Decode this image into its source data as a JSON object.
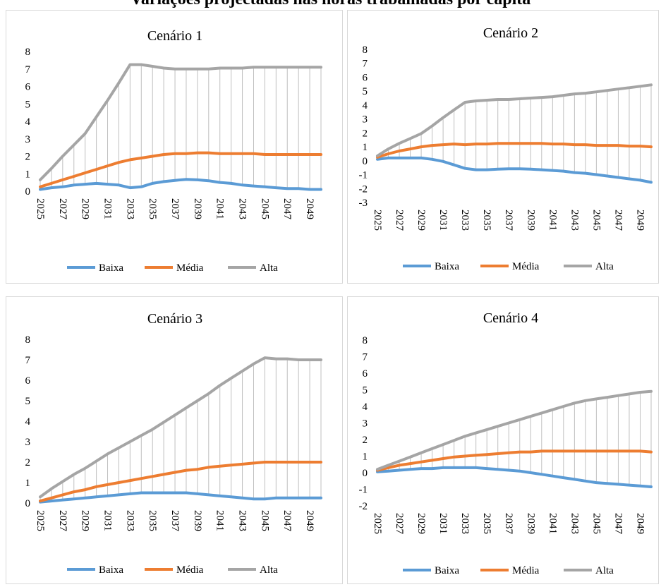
{
  "header": {
    "text": "Variações projectadas nas horas trabalhadas por capita"
  },
  "colors": {
    "baixa": "#5B9BD5",
    "media": "#ED7D31",
    "alta": "#A5A5A5",
    "droplines": "#bfbfbf",
    "border": "#d9d9d9"
  },
  "chart_data": [
    {
      "type": "line",
      "title": "Cenário 1",
      "x": [
        2025,
        2026,
        2027,
        2028,
        2029,
        2030,
        2031,
        2032,
        2033,
        2034,
        2035,
        2036,
        2037,
        2038,
        2039,
        2040,
        2041,
        2042,
        2043,
        2044,
        2045,
        2046,
        2047,
        2048,
        2049,
        2050
      ],
      "x_tick_labels": [
        "2025",
        "2027",
        "2029",
        "2031",
        "2033",
        "2035",
        "2037",
        "2039",
        "2041",
        "2043",
        "2045",
        "2047",
        "2049"
      ],
      "ylim": [
        0,
        8
      ],
      "y_ticks": [
        "0",
        "1",
        "2",
        "3",
        "4",
        "5",
        "6",
        "7",
        "8"
      ],
      "drop_lines": true,
      "legend_position": "bottom",
      "series": [
        {
          "name": "Baixa",
          "color_key": "baixa",
          "values": [
            0.1,
            0.2,
            0.25,
            0.35,
            0.4,
            0.45,
            0.4,
            0.35,
            0.2,
            0.25,
            0.45,
            0.55,
            0.62,
            0.68,
            0.65,
            0.6,
            0.5,
            0.45,
            0.35,
            0.3,
            0.25,
            0.2,
            0.15,
            0.15,
            0.1,
            0.1
          ]
        },
        {
          "name": "Média",
          "color_key": "media",
          "values": [
            0.25,
            0.45,
            0.65,
            0.85,
            1.05,
            1.25,
            1.45,
            1.65,
            1.8,
            1.9,
            2.0,
            2.1,
            2.15,
            2.15,
            2.2,
            2.2,
            2.15,
            2.15,
            2.15,
            2.15,
            2.1,
            2.1,
            2.1,
            2.1,
            2.1,
            2.1
          ]
        },
        {
          "name": "Alta",
          "color_key": "alta",
          "values": [
            0.65,
            1.3,
            2.0,
            2.65,
            3.3,
            4.25,
            5.2,
            6.2,
            7.25,
            7.25,
            7.15,
            7.05,
            7.0,
            7.0,
            7.0,
            7.0,
            7.05,
            7.05,
            7.05,
            7.1,
            7.1,
            7.1,
            7.1,
            7.1,
            7.1,
            7.1
          ]
        }
      ]
    },
    {
      "type": "line",
      "title": "Cenário 2",
      "x": [
        2025,
        2026,
        2027,
        2028,
        2029,
        2030,
        2031,
        2032,
        2033,
        2034,
        2035,
        2036,
        2037,
        2038,
        2039,
        2040,
        2041,
        2042,
        2043,
        2044,
        2045,
        2046,
        2047,
        2048,
        2049,
        2050
      ],
      "x_tick_labels": [
        "2025",
        "2027",
        "2029",
        "2031",
        "2033",
        "2035",
        "2037",
        "2039",
        "2041",
        "2043",
        "2045",
        "2047",
        "2049"
      ],
      "ylim": [
        -3,
        8
      ],
      "y_ticks": [
        "-3",
        "-2",
        "-1",
        "0",
        "1",
        "2",
        "3",
        "4",
        "5",
        "6",
        "7",
        "8"
      ],
      "drop_lines": true,
      "legend_position": "bottom",
      "series": [
        {
          "name": "Baixa",
          "color_key": "baixa",
          "values": [
            0.1,
            0.2,
            0.2,
            0.2,
            0.2,
            0.1,
            -0.05,
            -0.3,
            -0.55,
            -0.65,
            -0.65,
            -0.6,
            -0.58,
            -0.58,
            -0.6,
            -0.65,
            -0.7,
            -0.75,
            -0.85,
            -0.9,
            -1.0,
            -1.1,
            -1.2,
            -1.3,
            -1.4,
            -1.55
          ]
        },
        {
          "name": "Média",
          "color_key": "media",
          "values": [
            0.25,
            0.5,
            0.7,
            0.85,
            1.0,
            1.1,
            1.15,
            1.2,
            1.15,
            1.2,
            1.2,
            1.25,
            1.25,
            1.25,
            1.25,
            1.25,
            1.2,
            1.2,
            1.15,
            1.15,
            1.1,
            1.1,
            1.1,
            1.05,
            1.05,
            1.0
          ]
        },
        {
          "name": "Alta",
          "color_key": "alta",
          "values": [
            0.35,
            0.85,
            1.25,
            1.6,
            1.95,
            2.5,
            3.1,
            3.65,
            4.2,
            4.3,
            4.35,
            4.4,
            4.4,
            4.45,
            4.5,
            4.55,
            4.6,
            4.7,
            4.8,
            4.85,
            4.95,
            5.05,
            5.15,
            5.25,
            5.35,
            5.45
          ]
        }
      ]
    },
    {
      "type": "line",
      "title": "Cenário 3",
      "x": [
        2025,
        2026,
        2027,
        2028,
        2029,
        2030,
        2031,
        2032,
        2033,
        2034,
        2035,
        2036,
        2037,
        2038,
        2039,
        2040,
        2041,
        2042,
        2043,
        2044,
        2045,
        2046,
        2047,
        2048,
        2049,
        2050
      ],
      "x_tick_labels": [
        "2025",
        "2027",
        "2029",
        "2031",
        "2033",
        "2035",
        "2037",
        "2039",
        "2041",
        "2043",
        "2045",
        "2047",
        "2049"
      ],
      "ylim": [
        0,
        8
      ],
      "y_ticks": [
        "0",
        "1",
        "2",
        "3",
        "4",
        "5",
        "6",
        "7",
        "8"
      ],
      "drop_lines": true,
      "legend_position": "bottom",
      "series": [
        {
          "name": "Baixa",
          "color_key": "baixa",
          "values": [
            0.05,
            0.1,
            0.15,
            0.2,
            0.25,
            0.3,
            0.35,
            0.4,
            0.45,
            0.5,
            0.5,
            0.5,
            0.5,
            0.5,
            0.45,
            0.4,
            0.35,
            0.3,
            0.25,
            0.2,
            0.2,
            0.25,
            0.25,
            0.25,
            0.25,
            0.25
          ]
        },
        {
          "name": "Média",
          "color_key": "media",
          "values": [
            0.1,
            0.25,
            0.4,
            0.55,
            0.65,
            0.8,
            0.9,
            1.0,
            1.1,
            1.2,
            1.3,
            1.4,
            1.5,
            1.6,
            1.65,
            1.75,
            1.8,
            1.85,
            1.9,
            1.95,
            2.0,
            2.0,
            2.0,
            2.0,
            2.0,
            2.0
          ]
        },
        {
          "name": "Alta",
          "color_key": "alta",
          "values": [
            0.3,
            0.7,
            1.05,
            1.4,
            1.7,
            2.05,
            2.4,
            2.7,
            3.0,
            3.3,
            3.6,
            3.95,
            4.3,
            4.65,
            5.0,
            5.35,
            5.75,
            6.1,
            6.45,
            6.8,
            7.1,
            7.05,
            7.05,
            7.0,
            7.0,
            7.0
          ]
        }
      ]
    },
    {
      "type": "line",
      "title": "Cenário 4",
      "x": [
        2025,
        2026,
        2027,
        2028,
        2029,
        2030,
        2031,
        2032,
        2033,
        2034,
        2035,
        2036,
        2037,
        2038,
        2039,
        2040,
        2041,
        2042,
        2043,
        2044,
        2045,
        2046,
        2047,
        2048,
        2049,
        2050
      ],
      "x_tick_labels": [
        "2025",
        "2027",
        "2029",
        "2031",
        "2033",
        "2035",
        "2037",
        "2039",
        "2041",
        "2043",
        "2045",
        "2047",
        "2049"
      ],
      "ylim": [
        -2,
        8
      ],
      "y_ticks": [
        "-2",
        "-1",
        "0",
        "1",
        "2",
        "3",
        "4",
        "5",
        "6",
        "7",
        "8"
      ],
      "drop_lines": true,
      "legend_position": "bottom",
      "series": [
        {
          "name": "Baixa",
          "color_key": "baixa",
          "values": [
            0.05,
            0.1,
            0.15,
            0.2,
            0.25,
            0.25,
            0.3,
            0.3,
            0.3,
            0.3,
            0.25,
            0.2,
            0.15,
            0.1,
            0.0,
            -0.1,
            -0.2,
            -0.3,
            -0.4,
            -0.5,
            -0.6,
            -0.65,
            -0.7,
            -0.75,
            -0.8,
            -0.85
          ]
        },
        {
          "name": "Média",
          "color_key": "media",
          "values": [
            0.15,
            0.3,
            0.45,
            0.55,
            0.65,
            0.75,
            0.85,
            0.95,
            1.0,
            1.05,
            1.1,
            1.15,
            1.2,
            1.25,
            1.25,
            1.3,
            1.3,
            1.3,
            1.3,
            1.3,
            1.3,
            1.3,
            1.3,
            1.3,
            1.3,
            1.25
          ]
        },
        {
          "name": "Alta",
          "color_key": "alta",
          "values": [
            0.2,
            0.45,
            0.7,
            0.95,
            1.2,
            1.45,
            1.7,
            1.95,
            2.2,
            2.4,
            2.6,
            2.8,
            3.0,
            3.2,
            3.4,
            3.6,
            3.8,
            4.0,
            4.2,
            4.35,
            4.45,
            4.55,
            4.65,
            4.75,
            4.85,
            4.9
          ]
        }
      ]
    }
  ]
}
